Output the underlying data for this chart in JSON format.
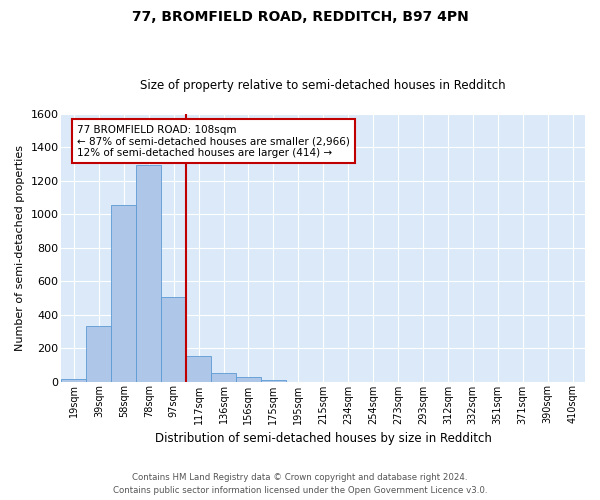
{
  "title": "77, BROMFIELD ROAD, REDDITCH, B97 4PN",
  "subtitle": "Size of property relative to semi-detached houses in Redditch",
  "xlabel": "Distribution of semi-detached houses by size in Redditch",
  "ylabel": "Number of semi-detached properties",
  "footer_line1": "Contains HM Land Registry data © Crown copyright and database right 2024.",
  "footer_line2": "Contains public sector information licensed under the Open Government Licence v3.0.",
  "bin_labels": [
    "19sqm",
    "39sqm",
    "58sqm",
    "78sqm",
    "97sqm",
    "117sqm",
    "136sqm",
    "156sqm",
    "175sqm",
    "195sqm",
    "215sqm",
    "234sqm",
    "254sqm",
    "273sqm",
    "293sqm",
    "312sqm",
    "332sqm",
    "351sqm",
    "371sqm",
    "390sqm",
    "410sqm"
  ],
  "bar_heights": [
    13,
    330,
    1055,
    1295,
    505,
    153,
    50,
    25,
    12,
    0,
    0,
    0,
    0,
    0,
    0,
    0,
    0,
    0,
    0,
    0,
    0
  ],
  "bar_color": "#aec6e8",
  "bar_edge_color": "#5b9bd5",
  "background_color": "#dce9f8",
  "grid_color": "#ffffff",
  "vline_color": "#c00000",
  "annotation_text": "77 BROMFIELD ROAD: 108sqm\n← 87% of semi-detached houses are smaller (2,966)\n12% of semi-detached houses are larger (414) →",
  "annotation_box_color": "#ffffff",
  "annotation_box_edge": "#c00000",
  "ylim": [
    0,
    1600
  ],
  "yticks": [
    0,
    200,
    400,
    600,
    800,
    1000,
    1200,
    1400,
    1600
  ],
  "vline_pos": 4.5,
  "figsize": [
    6.0,
    5.0
  ],
  "dpi": 100
}
